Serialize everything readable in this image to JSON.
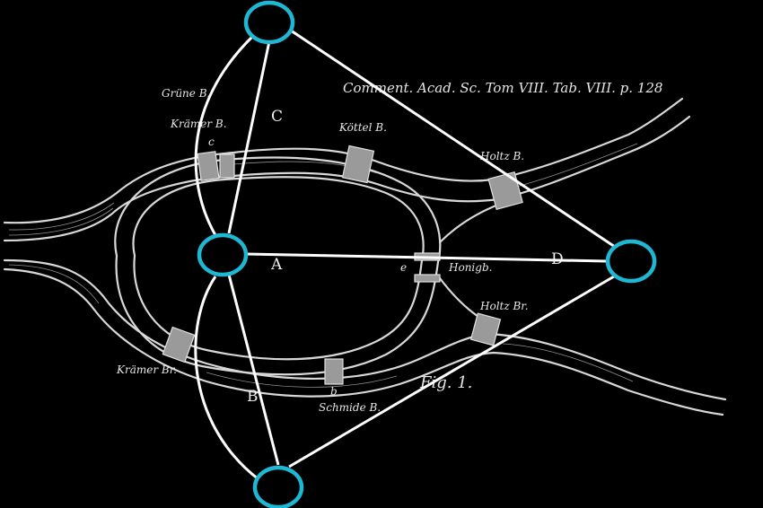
{
  "caption": "Comment. Acad. Sc. Tom VIII. Tab. VIII. p. 128",
  "figure_label": "Fig. 1.",
  "regions": {
    "A": "A",
    "B": "B",
    "C": "C",
    "D": "D"
  },
  "bridge_labels": {
    "gruene": "Grüne B.",
    "kraemer": "Krämer B.",
    "koettel": "Köttel B.",
    "holz_top": "Holtz B.",
    "honig": "Honigb.",
    "holz_bottom": "Holtz Br.",
    "kraemer_bottom": "Krämer Br.",
    "schmiede": "Schmide B."
  },
  "point_labels": {
    "c": "c",
    "e": "e",
    "b": "b"
  },
  "colors": {
    "vertex_stroke": "#1fb8d4",
    "edge": "#ffffff",
    "background": "#000000"
  }
}
